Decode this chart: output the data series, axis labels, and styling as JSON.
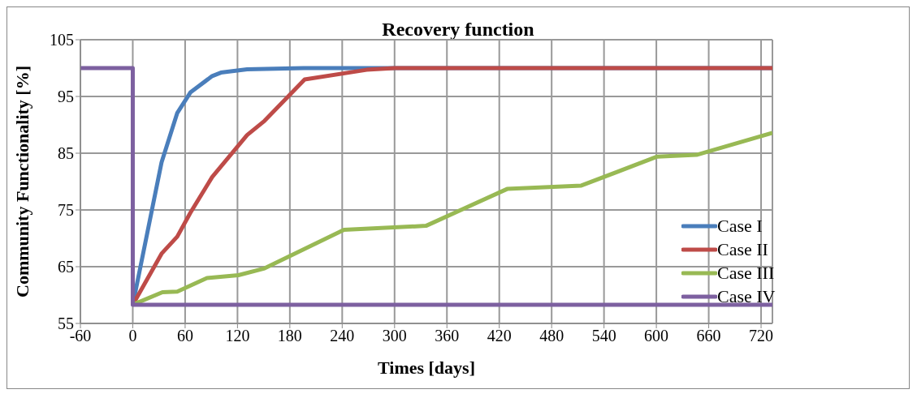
{
  "chart_data": {
    "type": "line",
    "title": "Recovery function",
    "xlabel": "Times [days]",
    "ylabel": "Community Functionality [%]",
    "xlim": [
      -60,
      733
    ],
    "xticks": [
      -60,
      0,
      60,
      120,
      180,
      240,
      300,
      360,
      420,
      480,
      540,
      600,
      660,
      720
    ],
    "ylim": [
      55,
      105
    ],
    "yticks": [
      55,
      65,
      75,
      85,
      95,
      105
    ],
    "grid": true,
    "legend": "right",
    "marker": "none",
    "line_style": "solid",
    "series": [
      {
        "name": "Case I",
        "color": "#4a7ebb",
        "x": [
          0,
          33,
          51,
          66,
          91,
          101,
          131,
          196,
          300,
          733
        ],
        "values": [
          58.3,
          83.4,
          92.1,
          95.7,
          98.6,
          99.2,
          99.8,
          100,
          100,
          100
        ]
      },
      {
        "name": "Case II",
        "color": "#be4b48",
        "x": [
          0,
          33,
          51,
          66,
          91,
          131,
          151,
          197,
          268,
          300,
          733
        ],
        "values": [
          58.3,
          67.3,
          70.3,
          74.5,
          80.8,
          88.2,
          90.7,
          98,
          99.7,
          100,
          100
        ]
      },
      {
        "name": "Case III",
        "color": "#98b954",
        "x": [
          0,
          34,
          51,
          85,
          121,
          151,
          242,
          336,
          429,
          514,
          601,
          646,
          733
        ],
        "values": [
          58.3,
          60.5,
          60.6,
          63,
          63.5,
          64.7,
          71.5,
          72.2,
          78.7,
          79.3,
          84.4,
          84.7,
          88.6
        ]
      },
      {
        "name": "Case IV",
        "color": "#7d60a0",
        "x": [
          -60,
          0,
          0,
          733
        ],
        "values": [
          100,
          100,
          58.3,
          58.3
        ]
      }
    ]
  }
}
